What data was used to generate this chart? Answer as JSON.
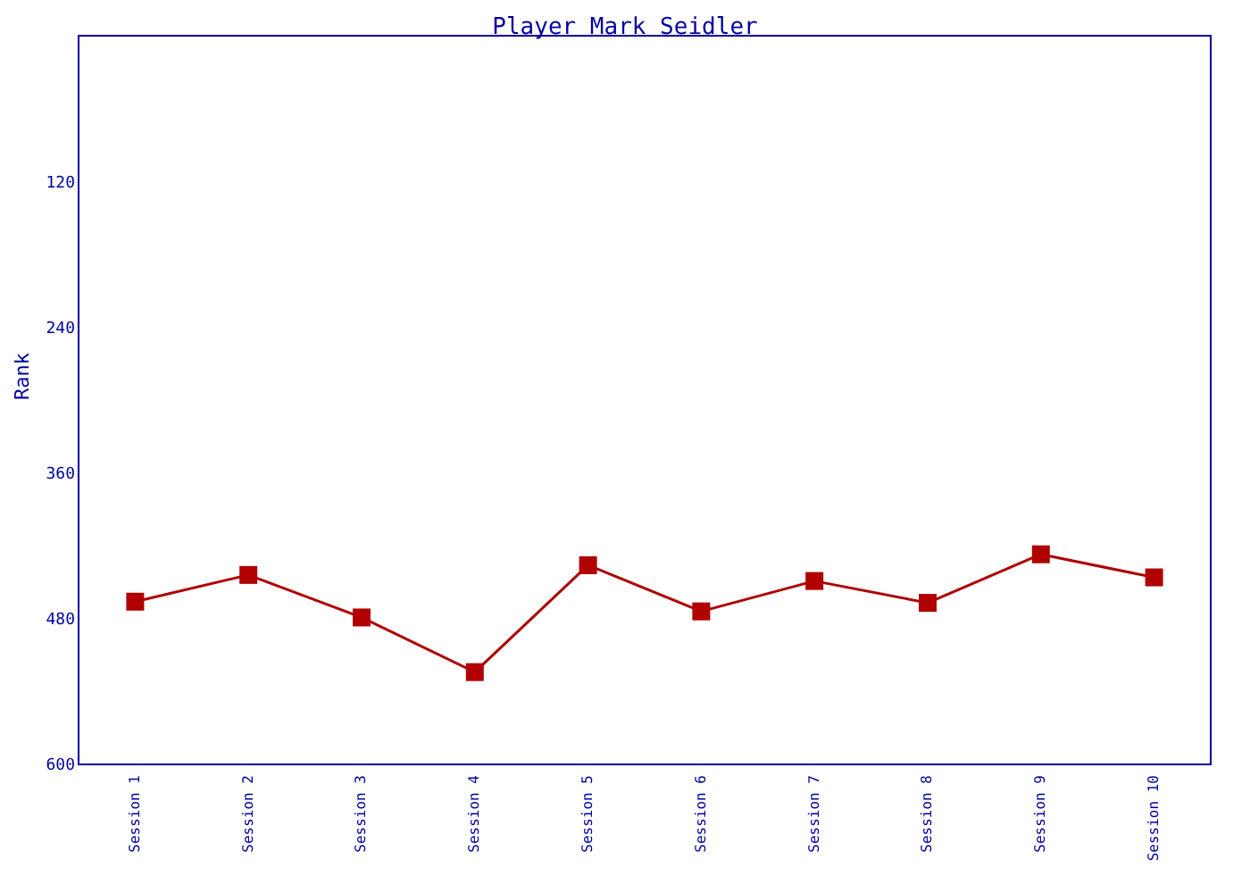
{
  "chart_data": {
    "type": "line",
    "title": "Player Mark Seidler",
    "ylabel": "Rank",
    "categories": [
      "Session 1",
      "Session 2",
      "Session 3",
      "Session 4",
      "Session 5",
      "Session 6",
      "Session 7",
      "Session 8",
      "Session 9",
      "Session 10"
    ],
    "series": [
      {
        "color": "#b00000",
        "values": [
          466,
          444,
          479,
          524,
          436,
          474,
          449,
          467,
          427,
          446
        ]
      }
    ],
    "ylim": [
      600,
      0
    ],
    "yticks": [
      120,
      240,
      360,
      480,
      600
    ],
    "marker": "square",
    "line_style": "solid"
  }
}
